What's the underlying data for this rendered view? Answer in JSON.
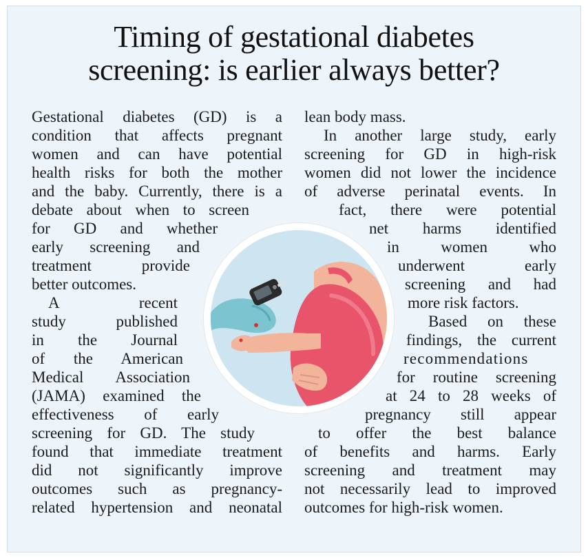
{
  "article": {
    "title_line1": "Timing of gestational diabetes",
    "title_line2": "screening: is earlier always better?",
    "left_lines": [
      "Gestational diabetes (GD) is a",
      "condition that affects pregnant",
      "women and can have potential",
      "health risks for both the mother",
      "and the baby. Currently, there is a",
      "debate about when to screen",
      "for GD and whether",
      "early screening and",
      "treatment provide",
      "better outcomes.",
      "A recent",
      "study published",
      "in the Journal",
      "of the American",
      "Medical Association",
      "(JAMA) examined the",
      "effectiveness of early",
      "screening for GD. The study",
      "found that immediate treatment",
      "did not significantly improve",
      "outcomes such as pregnancy-",
      "related hypertension and neonatal"
    ],
    "right_lines": [
      "lean body mass.",
      "In another large study, early",
      "screening for GD in high-risk",
      "women did not lower the incidence",
      "of adverse perinatal events. In",
      "fact, there were potential",
      "net harms identified",
      "in women who",
      "underwent early",
      "screening and had",
      "more risk factors.",
      "Based on these",
      "findings, the current",
      "recommendations",
      "for routine screening",
      "at 24 to 28 weeks of",
      "pregnancy still appear",
      "to offer the best balance",
      "of benefits and harms. Early",
      "screening and treatment may",
      "not necessarily lead to improved",
      "outcomes for high-risk women."
    ]
  },
  "illustration": {
    "icon": "glucose-meter-pregnant-woman-illustration",
    "colors": {
      "background": "#cde4f1",
      "dress": "#e8546a",
      "skin": "#f2b49a",
      "glove": "#7cc4cf",
      "meter": "#2a2a2a"
    }
  }
}
